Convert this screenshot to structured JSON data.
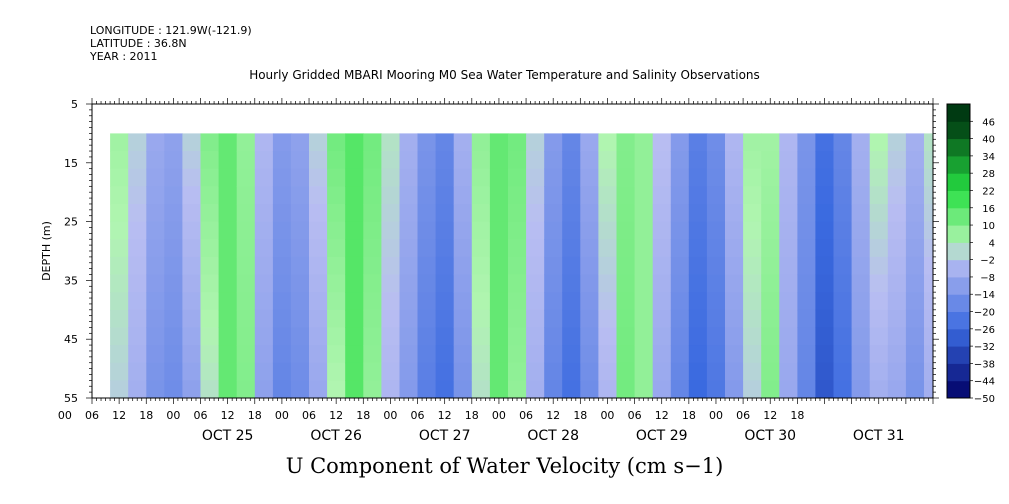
{
  "metadata": {
    "longitude": "LONGITUDE : 121.9W(-121.9)",
    "latitude": "LATITUDE : 36.8N",
    "year": "YEAR : 2011"
  },
  "colors": {
    "neg_max": "#000066",
    "neg_mid": "#3a6ae0",
    "neg_low": "#b8bdf2",
    "pos_low": "#b0f5b0",
    "pos_mid": "#27de43",
    "pos_max": "#003a12",
    "missing": "#ffffff"
  },
  "chart_data": {
    "type": "heatmap",
    "title": "Hourly Gridded MBARI Mooring M0 Sea Water Temperature and Salinity Observations",
    "caption": "U Component of Water Velocity (cm s−1)",
    "ylabel": "DEPTH (m)",
    "xlabel": "",
    "ylim": [
      55,
      5
    ],
    "y_ticks": [
      5,
      15,
      25,
      35,
      45,
      55
    ],
    "x_range_hours": [
      -18,
      168
    ],
    "x_tick_labels": [
      "00",
      "06",
      "12",
      "18",
      "00",
      "06",
      "12",
      "18",
      "00",
      "06",
      "12",
      "18",
      "00",
      "06",
      "12",
      "18",
      "00",
      "06",
      "12",
      "18",
      "00",
      "06",
      "12",
      "18",
      "00",
      "06",
      "12",
      "18"
    ],
    "x_tick_hours": [
      -24,
      -18,
      -12,
      -6,
      0,
      6,
      12,
      18,
      24,
      30,
      36,
      42,
      48,
      54,
      60,
      66,
      72,
      78,
      84,
      90,
      96,
      102,
      108,
      114,
      120,
      126,
      132,
      138
    ],
    "x_tick_hours_note": "hours relative to OCT 25 00:00",
    "day_labels": [
      "OCT 25",
      "OCT 26",
      "OCT 27",
      "OCT 28",
      "OCT 29",
      "OCT 30",
      "OCT 31"
    ],
    "day_label_hours": [
      12,
      36,
      60,
      84,
      108,
      132,
      156
    ],
    "data_start_hour": -14,
    "data_end_hour": 167,
    "data_depth_range": [
      10,
      55
    ],
    "colorbar_levels": [
      -50,
      -44,
      -38,
      -32,
      -26,
      -20,
      -14,
      -8,
      -2,
      4,
      10,
      16,
      22,
      28,
      34,
      40,
      46
    ],
    "colorbar_labels": [
      "46",
      "40",
      "34",
      "28",
      "22",
      "16",
      "10",
      "4",
      "−2",
      "−8",
      "−14",
      "−20",
      "−26",
      "−32",
      "−38",
      "−44",
      "−50"
    ],
    "series": [
      {
        "name": "u_velocity_column_means",
        "description": "approximate depth-averaged U velocity at 4-hour steps from hour -14",
        "x_hours": [
          -14,
          -10,
          -6,
          -2,
          2,
          6,
          10,
          14,
          18,
          22,
          26,
          30,
          34,
          38,
          42,
          46,
          50,
          54,
          58,
          62,
          66,
          70,
          74,
          78,
          82,
          86,
          90,
          94,
          98,
          102,
          106,
          110,
          114,
          118,
          122,
          126,
          130,
          134,
          138,
          142,
          146,
          150,
          154,
          158,
          162,
          166
        ],
        "values": [
          4,
          -2,
          -10,
          -12,
          -4,
          6,
          10,
          6,
          -6,
          -14,
          -12,
          -4,
          8,
          14,
          10,
          0,
          -8,
          -16,
          -20,
          -10,
          4,
          12,
          10,
          -2,
          -14,
          -20,
          -12,
          0,
          8,
          6,
          -4,
          -14,
          -22,
          -18,
          -8,
          2,
          4,
          -6,
          -16,
          -26,
          -20,
          -8,
          0,
          -4,
          -10,
          -2
        ],
        "surface_values": [
          6,
          0,
          -8,
          -10,
          0,
          10,
          14,
          8,
          -4,
          -12,
          -10,
          0,
          12,
          16,
          12,
          2,
          -6,
          -14,
          -18,
          -6,
          8,
          14,
          12,
          0,
          -12,
          -18,
          -8,
          4,
          10,
          8,
          -2,
          -12,
          -20,
          -16,
          -4,
          6,
          6,
          -4,
          -14,
          -24,
          -18,
          -6,
          4,
          0,
          -6,
          2
        ],
        "bottom_values": [
          0,
          -6,
          -14,
          -16,
          -10,
          2,
          14,
          10,
          -10,
          -18,
          -16,
          -8,
          4,
          16,
          8,
          -4,
          -12,
          -20,
          -24,
          -14,
          2,
          14,
          8,
          -6,
          -18,
          -24,
          -16,
          -4,
          12,
          8,
          -8,
          -18,
          -26,
          -22,
          -12,
          0,
          10,
          -8,
          -18,
          -30,
          -24,
          -12,
          -6,
          -8,
          -14,
          -6
        ]
      }
    ],
    "colorbar_range": [
      -50,
      52
    ]
  }
}
